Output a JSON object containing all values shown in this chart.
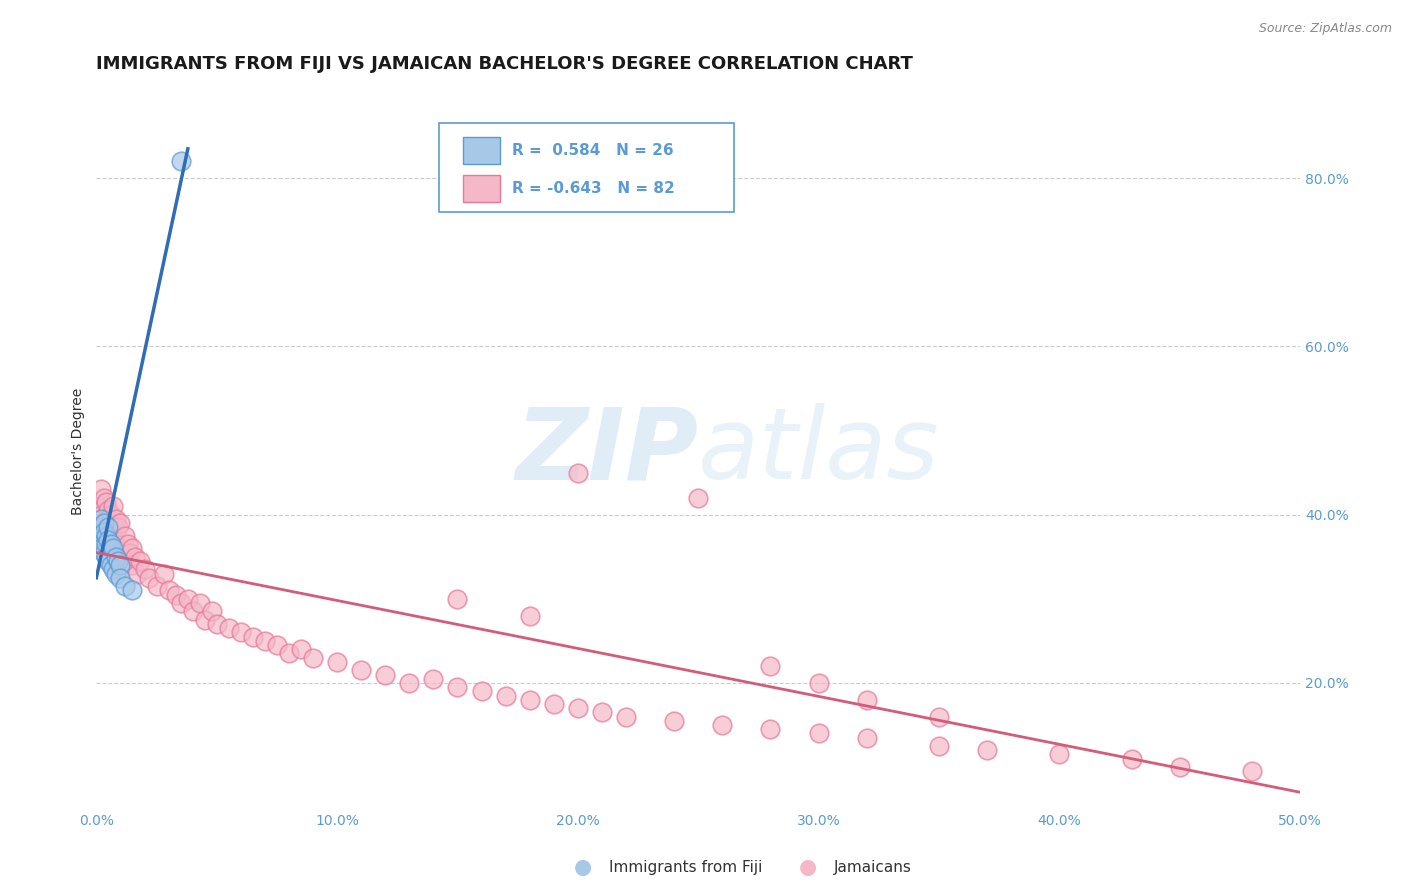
{
  "title": "IMMIGRANTS FROM FIJI VS JAMAICAN BACHELOR'S DEGREE CORRELATION CHART",
  "source": "Source: ZipAtlas.com",
  "ylabel": "Bachelor's Degree",
  "xlim": [
    0.0,
    0.5
  ],
  "ylim": [
    0.05,
    0.9
  ],
  "xticks": [
    0.0,
    0.1,
    0.2,
    0.3,
    0.4,
    0.5
  ],
  "xtick_labels": [
    "0.0%",
    "10.0%",
    "20.0%",
    "30.0%",
    "40.0%",
    "50.0%"
  ],
  "yticks_right": [
    0.2,
    0.4,
    0.6,
    0.8
  ],
  "ytick_labels_right": [
    "20.0%",
    "40.0%",
    "60.0%",
    "80.0%"
  ],
  "grid_color": "#cccccc",
  "background_color": "#ffffff",
  "fiji_color": "#a8c8e8",
  "fiji_edge_color": "#5b9bd5",
  "jamaican_color": "#f4b8c8",
  "jamaican_edge_color": "#e87898",
  "fiji_r": "0.584",
  "fiji_n": "26",
  "jamaican_r": "-0.643",
  "jamaican_n": "82",
  "fiji_label": "Immigrants from Fiji",
  "jamaican_label": "Jamaicans",
  "fiji_points_x": [
    0.001,
    0.001,
    0.002,
    0.002,
    0.002,
    0.003,
    0.003,
    0.003,
    0.004,
    0.004,
    0.004,
    0.005,
    0.005,
    0.005,
    0.006,
    0.006,
    0.007,
    0.007,
    0.008,
    0.008,
    0.009,
    0.01,
    0.01,
    0.012,
    0.015,
    0.035
  ],
  "fiji_points_y": [
    0.385,
    0.375,
    0.395,
    0.37,
    0.36,
    0.39,
    0.38,
    0.355,
    0.375,
    0.365,
    0.35,
    0.385,
    0.37,
    0.345,
    0.365,
    0.34,
    0.36,
    0.335,
    0.35,
    0.33,
    0.345,
    0.34,
    0.325,
    0.315,
    0.31,
    0.82
  ],
  "jamaican_points_x": [
    0.001,
    0.002,
    0.002,
    0.003,
    0.003,
    0.004,
    0.004,
    0.005,
    0.005,
    0.005,
    0.006,
    0.006,
    0.007,
    0.007,
    0.008,
    0.008,
    0.009,
    0.009,
    0.01,
    0.01,
    0.012,
    0.012,
    0.013,
    0.014,
    0.015,
    0.015,
    0.016,
    0.017,
    0.018,
    0.02,
    0.022,
    0.025,
    0.028,
    0.03,
    0.033,
    0.035,
    0.038,
    0.04,
    0.043,
    0.045,
    0.048,
    0.05,
    0.055,
    0.06,
    0.065,
    0.07,
    0.075,
    0.08,
    0.085,
    0.09,
    0.1,
    0.11,
    0.12,
    0.13,
    0.14,
    0.15,
    0.16,
    0.17,
    0.18,
    0.19,
    0.2,
    0.21,
    0.22,
    0.24,
    0.26,
    0.28,
    0.3,
    0.32,
    0.35,
    0.37,
    0.4,
    0.43,
    0.45,
    0.48,
    0.2,
    0.25,
    0.15,
    0.18,
    0.28,
    0.3,
    0.32,
    0.35
  ],
  "jamaican_points_y": [
    0.41,
    0.43,
    0.4,
    0.42,
    0.39,
    0.415,
    0.385,
    0.405,
    0.395,
    0.375,
    0.4,
    0.38,
    0.41,
    0.37,
    0.395,
    0.365,
    0.385,
    0.36,
    0.39,
    0.355,
    0.375,
    0.345,
    0.365,
    0.355,
    0.36,
    0.34,
    0.35,
    0.33,
    0.345,
    0.335,
    0.325,
    0.315,
    0.33,
    0.31,
    0.305,
    0.295,
    0.3,
    0.285,
    0.295,
    0.275,
    0.285,
    0.27,
    0.265,
    0.26,
    0.255,
    0.25,
    0.245,
    0.235,
    0.24,
    0.23,
    0.225,
    0.215,
    0.21,
    0.2,
    0.205,
    0.195,
    0.19,
    0.185,
    0.18,
    0.175,
    0.17,
    0.165,
    0.16,
    0.155,
    0.15,
    0.145,
    0.14,
    0.135,
    0.125,
    0.12,
    0.115,
    0.11,
    0.1,
    0.095,
    0.45,
    0.42,
    0.3,
    0.28,
    0.22,
    0.2,
    0.18,
    0.16
  ],
  "fiji_line_color": "#2f6db5",
  "jamaican_line_color": "#d45b7a",
  "fiji_line_x": [
    0.0,
    0.038
  ],
  "fiji_line_y": [
    0.325,
    0.835
  ],
  "jamaican_line_x": [
    0.0,
    0.5
  ],
  "jamaican_line_y": [
    0.355,
    0.07
  ],
  "watermark_zip": "ZIP",
  "watermark_atlas": "atlas",
  "title_fontsize": 13,
  "axis_tick_color": "#5b9bd5",
  "legend_box_color": "#5b9bd5",
  "legend_box_fill": "#ffffff"
}
